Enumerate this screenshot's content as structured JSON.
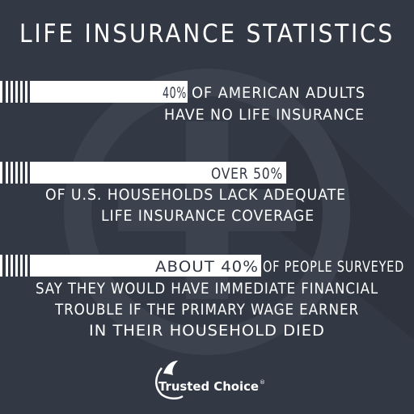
{
  "title": "LIFE INSURANCE STATISTICS",
  "stats": [
    {
      "highlight": "40%",
      "lines": [
        "OF AMERICAN ADULTS",
        "HAVE NO LIFE INSURANCE"
      ]
    },
    {
      "highlight": "OVER 50%",
      "lines": [
        "OF U.S. HOUSEHOLDS LACK ADEQUATE",
        "LIFE INSURANCE COVERAGE"
      ]
    },
    {
      "highlight": "ABOUT 40%",
      "lines": [
        "OF PEOPLE SURVEYED",
        "SAY THEY WOULD HAVE IMMEDIATE FINANCIAL",
        "TROUBLE IF THE PRIMARY WAGE EARNER",
        "IN THEIR HOUSEHOLD DIED"
      ]
    }
  ],
  "logo": {
    "name": "Trusted Choice",
    "mark": "®"
  }
}
